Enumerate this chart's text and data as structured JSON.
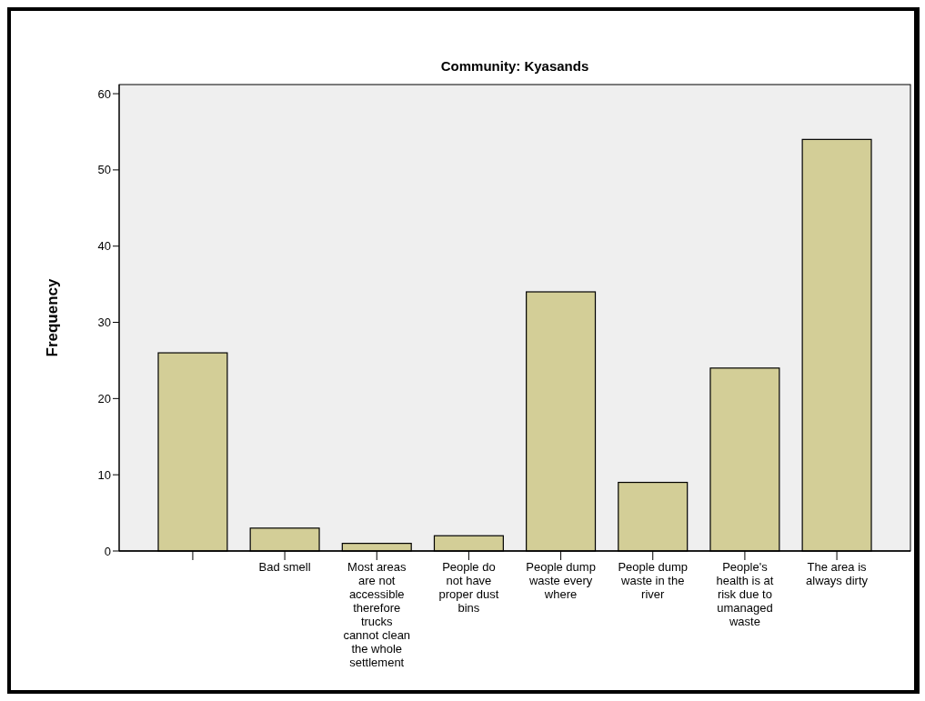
{
  "chart_data": {
    "type": "bar",
    "title": "Community: Kyasands",
    "ylabel": "Frequency",
    "categories": [
      null,
      "Bad smell",
      "Most areas are not accessible therefore trucks cannot clean the whole settlement",
      "People do not have proper dust bins",
      "People dump waste every where",
      "People dump waste in the river",
      "People's health is at risk due to umanaged waste",
      "The area is always dirty"
    ],
    "values": [
      26,
      3,
      1,
      2,
      34,
      9,
      24,
      54
    ],
    "color": "#d3ce97",
    "ylim": [
      0,
      61.2
    ],
    "yticks": [
      0,
      10,
      20,
      30,
      40,
      50,
      60
    ],
    "grid": false
  }
}
